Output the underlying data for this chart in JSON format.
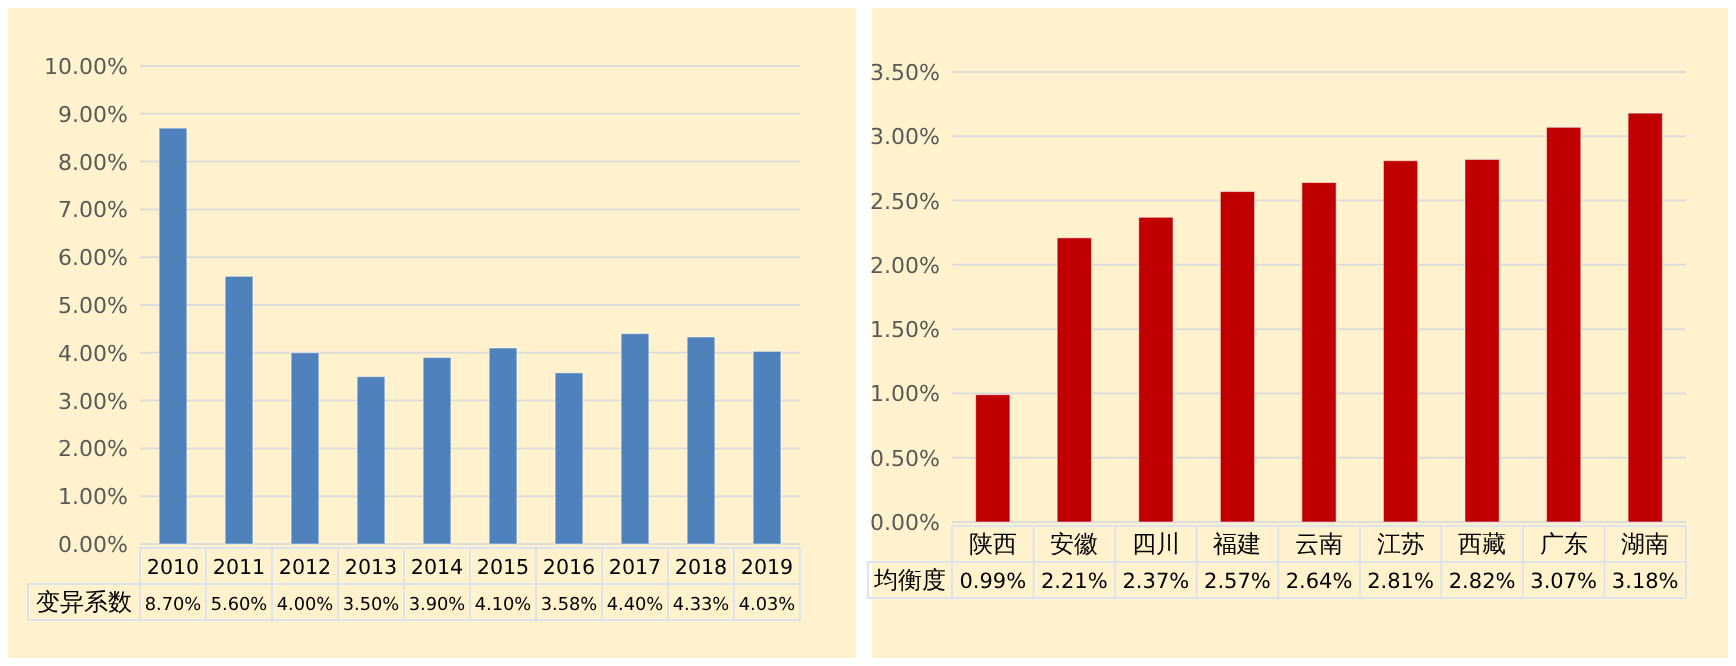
{
  "chart_data": [
    {
      "type": "bar",
      "categories": [
        "2010",
        "2011",
        "2012",
        "2013",
        "2014",
        "2015",
        "2016",
        "2017",
        "2018",
        "2019"
      ],
      "series": [
        {
          "name": "变异系数",
          "color": "#4f81bd",
          "values": [
            8.7,
            5.6,
            4.0,
            3.5,
            3.9,
            4.1,
            3.58,
            4.4,
            4.33,
            4.03
          ],
          "value_labels": [
            "8.70%",
            "5.60%",
            "4.00%",
            "3.50%",
            "3.90%",
            "4.10%",
            "3.58%",
            "4.40%",
            "4.33%",
            "4.03%"
          ]
        }
      ],
      "ylim": [
        0,
        10
      ],
      "yticks": [
        {
          "value": 0,
          "label": "0.00%"
        },
        {
          "value": 1,
          "label": "1.00%"
        },
        {
          "value": 2,
          "label": "2.00%"
        },
        {
          "value": 3,
          "label": "3.00%"
        },
        {
          "value": 4,
          "label": "4.00%"
        },
        {
          "value": 5,
          "label": "5.00%"
        },
        {
          "value": 6,
          "label": "6.00%"
        },
        {
          "value": 7,
          "label": "7.00%"
        },
        {
          "value": 8,
          "label": "8.00%"
        },
        {
          "value": 9,
          "label": "9.00%"
        },
        {
          "value": 10,
          "label": "10.00%"
        }
      ],
      "grid": "y"
    },
    {
      "type": "bar",
      "categories": [
        "陕西",
        "安徽",
        "四川",
        "福建",
        "云南",
        "江苏",
        "西藏",
        "广东",
        "湖南"
      ],
      "series": [
        {
          "name": "均衡度",
          "color": "#c00000",
          "values": [
            0.99,
            2.21,
            2.37,
            2.57,
            2.64,
            2.81,
            2.82,
            3.07,
            3.18
          ],
          "value_labels": [
            "0.99%",
            "2.21%",
            "2.37%",
            "2.57%",
            "2.64%",
            "2.81%",
            "2.82%",
            "3.07%",
            "3.18%"
          ]
        }
      ],
      "ylim": [
        0,
        3.5
      ],
      "yticks": [
        {
          "value": 0,
          "label": "0.00%"
        },
        {
          "value": 0.5,
          "label": "0.50%"
        },
        {
          "value": 1,
          "label": "1.00%"
        },
        {
          "value": 1.5,
          "label": "1.50%"
        },
        {
          "value": 2,
          "label": "2.00%"
        },
        {
          "value": 2.5,
          "label": "2.50%"
        },
        {
          "value": 3,
          "label": "3.00%"
        },
        {
          "value": 3.5,
          "label": "3.50%"
        }
      ],
      "grid": "y"
    }
  ]
}
